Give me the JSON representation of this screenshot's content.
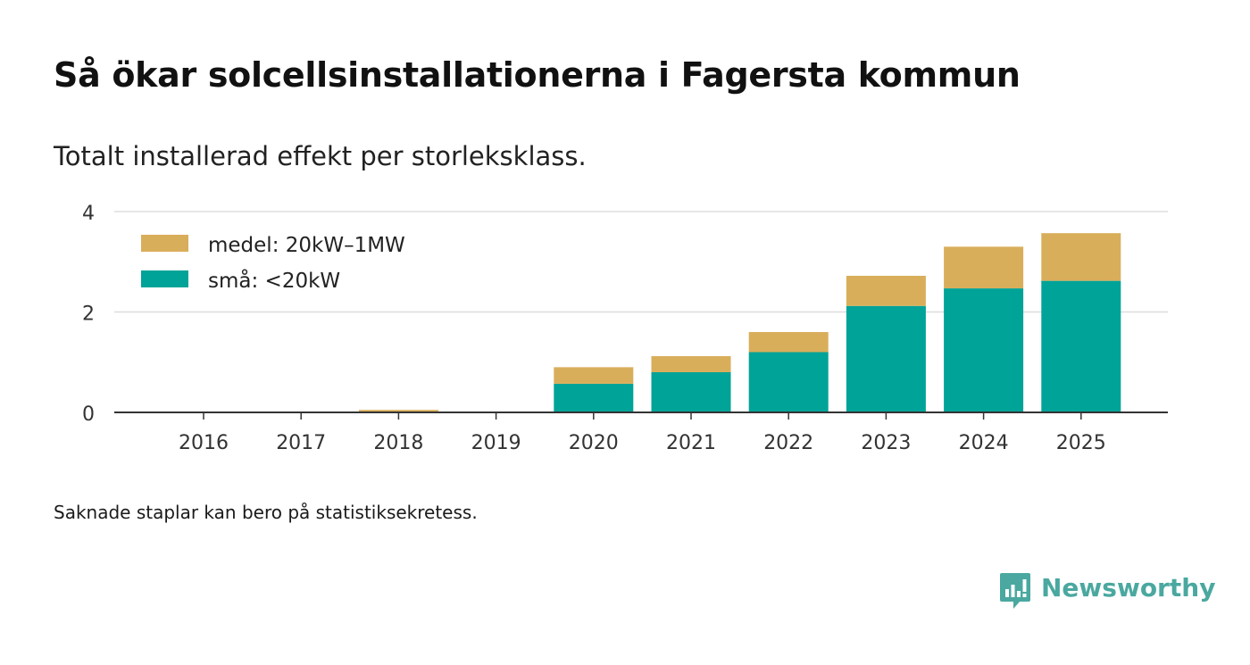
{
  "header": {
    "title": "Så ökar solcellsinstallationerna i Fagersta kommun",
    "subtitle": "Totalt installerad effekt per storleksklass."
  },
  "footer": {
    "note": "Saknade staplar kan bero på statistiksekretess.",
    "brand": "Newsworthy",
    "brand_icon": "bar-chart-speech-bubble-icon",
    "brand_color": "#4aa8a0"
  },
  "chart_data": {
    "type": "bar",
    "stacked": true,
    "categories": [
      "2016",
      "2017",
      "2018",
      "2019",
      "2020",
      "2021",
      "2022",
      "2023",
      "2024",
      "2025"
    ],
    "series": [
      {
        "name": "små: <20kW",
        "color": "#00a398",
        "values": [
          0,
          0,
          0.01,
          0,
          0.57,
          0.8,
          1.2,
          2.12,
          2.47,
          2.62
        ]
      },
      {
        "name": "medel: 20kW–1MW",
        "color": "#d9ae5b",
        "values": [
          0,
          0,
          0.04,
          0,
          0.33,
          0.32,
          0.4,
          0.6,
          0.83,
          0.95
        ]
      }
    ],
    "legend": [
      "medel: 20kW–1MW",
      "små: <20kW"
    ],
    "legend_position": "top-left",
    "ylim": [
      0,
      4
    ],
    "yticks": [
      "0",
      "2",
      "4"
    ],
    "title": "Så ökar solcellsinstallationerna i Fagersta kommun",
    "xlabel": "",
    "ylabel": "",
    "grid": true
  }
}
